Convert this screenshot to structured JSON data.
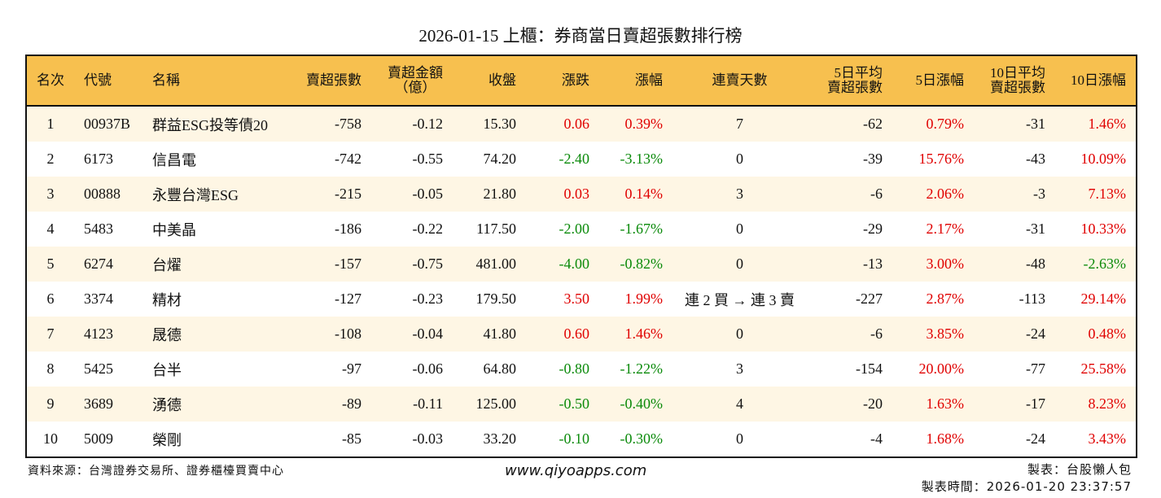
{
  "title": "2026-01-15 上櫃：券商當日賣超張數排行榜",
  "headers": {
    "rank": "名次",
    "code": "代號",
    "name": "名稱",
    "sell": "賣超張數",
    "amount_1": "賣超金額",
    "amount_2": "（億）",
    "close": "收盤",
    "chg": "漲跌",
    "pct": "漲幅",
    "days": "連賣天數",
    "avg5_1": "5日平均",
    "avg5_2": "賣超張數",
    "pct5": "5日漲幅",
    "avg10_1": "10日平均",
    "avg10_2": "賣超張數",
    "pct10": "10日漲幅"
  },
  "rows": [
    {
      "rank": "1",
      "code": "00937B",
      "name": "群益ESG投等債20",
      "sell": "-758",
      "amount": "-0.12",
      "close": "15.30",
      "chg": "0.06",
      "pct": "0.39%",
      "days": "7",
      "avg5": "-62",
      "pct5": "0.79%",
      "avg10": "-31",
      "pct10": "1.46%"
    },
    {
      "rank": "2",
      "code": "6173",
      "name": "信昌電",
      "sell": "-742",
      "amount": "-0.55",
      "close": "74.20",
      "chg": "-2.40",
      "pct": "-3.13%",
      "days": "0",
      "avg5": "-39",
      "pct5": "15.76%",
      "avg10": "-43",
      "pct10": "10.09%"
    },
    {
      "rank": "3",
      "code": "00888",
      "name": "永豐台灣ESG",
      "sell": "-215",
      "amount": "-0.05",
      "close": "21.80",
      "chg": "0.03",
      "pct": "0.14%",
      "days": "3",
      "avg5": "-6",
      "pct5": "2.06%",
      "avg10": "-3",
      "pct10": "7.13%"
    },
    {
      "rank": "4",
      "code": "5483",
      "name": "中美晶",
      "sell": "-186",
      "amount": "-0.22",
      "close": "117.50",
      "chg": "-2.00",
      "pct": "-1.67%",
      "days": "0",
      "avg5": "-29",
      "pct5": "2.17%",
      "avg10": "-31",
      "pct10": "10.33%"
    },
    {
      "rank": "5",
      "code": "6274",
      "name": "台燿",
      "sell": "-157",
      "amount": "-0.75",
      "close": "481.00",
      "chg": "-4.00",
      "pct": "-0.82%",
      "days": "0",
      "avg5": "-13",
      "pct5": "3.00%",
      "avg10": "-48",
      "pct10": "-2.63%"
    },
    {
      "rank": "6",
      "code": "3374",
      "name": "精材",
      "sell": "-127",
      "amount": "-0.23",
      "close": "179.50",
      "chg": "3.50",
      "pct": "1.99%",
      "days": "連 2 買 → 連 3 賣",
      "avg5": "-227",
      "pct5": "2.87%",
      "avg10": "-113",
      "pct10": "29.14%"
    },
    {
      "rank": "7",
      "code": "4123",
      "name": "晟德",
      "sell": "-108",
      "amount": "-0.04",
      "close": "41.80",
      "chg": "0.60",
      "pct": "1.46%",
      "days": "0",
      "avg5": "-6",
      "pct5": "3.85%",
      "avg10": "-24",
      "pct10": "0.48%"
    },
    {
      "rank": "8",
      "code": "5425",
      "name": "台半",
      "sell": "-97",
      "amount": "-0.06",
      "close": "64.80",
      "chg": "-0.80",
      "pct": "-1.22%",
      "days": "3",
      "avg5": "-154",
      "pct5": "20.00%",
      "avg10": "-77",
      "pct10": "25.58%"
    },
    {
      "rank": "9",
      "code": "3689",
      "name": "湧德",
      "sell": "-89",
      "amount": "-0.11",
      "close": "125.00",
      "chg": "-0.50",
      "pct": "-0.40%",
      "days": "4",
      "avg5": "-20",
      "pct5": "1.63%",
      "avg10": "-17",
      "pct10": "8.23%"
    },
    {
      "rank": "10",
      "code": "5009",
      "name": "榮剛",
      "sell": "-85",
      "amount": "-0.03",
      "close": "33.20",
      "chg": "-0.10",
      "pct": "-0.30%",
      "days": "0",
      "avg5": "-4",
      "pct5": "1.68%",
      "avg10": "-24",
      "pct10": "3.43%"
    }
  ],
  "footer": {
    "source": "資料來源：台灣證券交易所、證券櫃檯買賣中心",
    "site": "www.qiyoapps.com",
    "maker": "製表：台股懶人包",
    "time": "製表時間：2026-01-20 23:37:57"
  },
  "colors": {
    "header": "#F7C04F",
    "stripe": "#FEF6E4",
    "up": "#E00000",
    "down": "#0A8A0A"
  }
}
